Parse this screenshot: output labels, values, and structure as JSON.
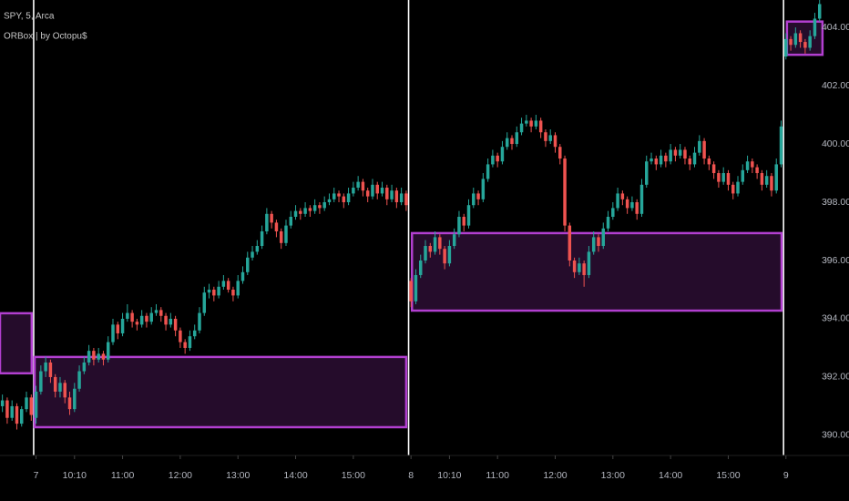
{
  "chart_data": {
    "type": "candlestick",
    "title": "SPY, 5, Arca",
    "subtitle": "ORBox | by Octopu$",
    "up_color": "#26a69a",
    "down_color": "#ef5350",
    "box_color": "#b23fd0",
    "box_fill": "#250c2b",
    "xlim": [
      -0.5,
      171
    ],
    "ylim": [
      389.31,
      404.94
    ],
    "yticks": [
      {
        "value": 390,
        "label": "390.00"
      },
      {
        "value": 392,
        "label": "392.00"
      },
      {
        "value": 394,
        "label": "394.00"
      },
      {
        "value": 396,
        "label": "396.00"
      },
      {
        "value": 398,
        "label": "398.00"
      },
      {
        "value": 400,
        "label": "400.00"
      },
      {
        "value": 402,
        "label": "402.00"
      },
      {
        "value": 404,
        "label": "404.00"
      }
    ],
    "xticks": [
      {
        "value": 7,
        "label": "7"
      },
      {
        "value": 15,
        "label": "10:10"
      },
      {
        "value": 25,
        "label": "11:00"
      },
      {
        "value": 37,
        "label": "12:00"
      },
      {
        "value": 49,
        "label": "13:00"
      },
      {
        "value": 61,
        "label": "14:00"
      },
      {
        "value": 73,
        "label": "15:00"
      },
      {
        "value": 85,
        "label": "8"
      },
      {
        "value": 93,
        "label": "10:10"
      },
      {
        "value": 103,
        "label": "11:00"
      },
      {
        "value": 115,
        "label": "12:00"
      },
      {
        "value": 127,
        "label": "13:00"
      },
      {
        "value": 139,
        "label": "14:00"
      },
      {
        "value": 151,
        "label": "15:00"
      },
      {
        "value": 163,
        "label": "9"
      }
    ],
    "session_breaks": [
      6.5,
      84.5,
      162.5
    ],
    "boxes": [
      {
        "x": [
          -0.5,
          6.1
        ],
        "y": [
          392.13,
          394.19
        ]
      },
      {
        "x": [
          6.7,
          84.0
        ],
        "y": [
          390.28,
          392.69
        ]
      },
      {
        "x": [
          85.2,
          162.1
        ],
        "y": [
          394.28,
          396.94
        ]
      },
      {
        "x": [
          163.2,
          170.6
        ],
        "y": [
          403.06,
          404.2
        ]
      }
    ],
    "ohlc": [
      [
        391.0,
        391.4,
        390.8,
        391.2
      ],
      [
        391.2,
        391.3,
        390.4,
        390.6
      ],
      [
        390.6,
        391.2,
        390.5,
        391.0
      ],
      [
        391.0,
        391.1,
        390.2,
        390.4
      ],
      [
        390.4,
        391.0,
        390.3,
        390.9
      ],
      [
        390.9,
        391.5,
        390.8,
        391.3
      ],
      [
        391.3,
        391.4,
        390.5,
        390.7
      ],
      [
        390.6,
        391.7,
        390.4,
        391.5
      ],
      [
        391.5,
        392.4,
        391.4,
        392.2
      ],
      [
        392.2,
        392.7,
        392.0,
        392.5
      ],
      [
        392.5,
        392.6,
        391.8,
        392.0
      ],
      [
        392.0,
        392.1,
        391.3,
        391.5
      ],
      [
        391.5,
        392.0,
        391.3,
        391.8
      ],
      [
        391.8,
        391.9,
        391.1,
        391.3
      ],
      [
        391.3,
        391.5,
        390.7,
        390.9
      ],
      [
        390.9,
        391.8,
        390.8,
        391.6
      ],
      [
        391.6,
        392.4,
        391.5,
        392.2
      ],
      [
        392.2,
        392.7,
        392.1,
        392.5
      ],
      [
        392.5,
        393.1,
        392.4,
        392.9
      ],
      [
        392.9,
        393.0,
        392.4,
        392.6
      ],
      [
        392.6,
        393.0,
        392.5,
        392.8
      ],
      [
        392.8,
        392.9,
        392.4,
        392.6
      ],
      [
        392.6,
        393.4,
        392.5,
        393.2
      ],
      [
        393.2,
        394.0,
        393.1,
        393.8
      ],
      [
        393.8,
        393.9,
        393.3,
        393.5
      ],
      [
        393.5,
        394.2,
        393.4,
        394.0
      ],
      [
        394.0,
        394.5,
        393.9,
        394.2
      ],
      [
        394.2,
        394.3,
        393.7,
        393.9
      ],
      [
        393.9,
        394.0,
        393.6,
        393.8
      ],
      [
        393.8,
        394.3,
        393.7,
        394.1
      ],
      [
        394.1,
        394.2,
        393.7,
        393.9
      ],
      [
        393.9,
        394.4,
        393.8,
        394.2
      ],
      [
        394.2,
        394.5,
        394.1,
        394.3
      ],
      [
        394.3,
        394.4,
        393.9,
        394.1
      ],
      [
        394.1,
        394.2,
        393.6,
        393.8
      ],
      [
        393.8,
        394.2,
        393.7,
        394.0
      ],
      [
        394.0,
        394.1,
        393.4,
        393.6
      ],
      [
        393.6,
        393.7,
        393.0,
        393.2
      ],
      [
        393.2,
        393.3,
        392.8,
        393.0
      ],
      [
        393.0,
        393.6,
        392.9,
        393.4
      ],
      [
        393.4,
        393.8,
        393.3,
        393.6
      ],
      [
        393.6,
        394.4,
        393.5,
        394.2
      ],
      [
        394.2,
        395.1,
        394.1,
        394.9
      ],
      [
        394.9,
        395.2,
        394.7,
        395.0
      ],
      [
        395.0,
        395.1,
        394.6,
        394.8
      ],
      [
        394.8,
        395.3,
        394.7,
        395.1
      ],
      [
        395.1,
        395.5,
        395.0,
        395.3
      ],
      [
        395.3,
        395.4,
        394.9,
        395.0
      ],
      [
        395.0,
        395.1,
        394.6,
        394.8
      ],
      [
        394.8,
        395.5,
        394.7,
        395.3
      ],
      [
        395.3,
        395.8,
        395.2,
        395.6
      ],
      [
        395.6,
        396.3,
        395.5,
        396.1
      ],
      [
        396.1,
        396.5,
        396.0,
        396.3
      ],
      [
        396.3,
        396.7,
        396.2,
        396.5
      ],
      [
        396.5,
        397.2,
        396.4,
        397.0
      ],
      [
        397.0,
        397.8,
        396.9,
        397.6
      ],
      [
        397.6,
        397.7,
        397.1,
        397.3
      ],
      [
        397.3,
        397.4,
        396.8,
        397.0
      ],
      [
        397.0,
        397.1,
        396.4,
        396.6
      ],
      [
        396.6,
        397.4,
        396.5,
        397.2
      ],
      [
        397.2,
        397.7,
        397.1,
        397.5
      ],
      [
        397.5,
        397.9,
        397.4,
        397.7
      ],
      [
        397.7,
        397.8,
        397.4,
        397.6
      ],
      [
        397.6,
        398.0,
        397.5,
        397.8
      ],
      [
        397.8,
        397.9,
        397.5,
        397.7
      ],
      [
        397.7,
        398.1,
        397.6,
        397.9
      ],
      [
        397.9,
        398.0,
        397.6,
        397.8
      ],
      [
        397.8,
        398.2,
        397.7,
        398.0
      ],
      [
        398.0,
        398.3,
        397.9,
        398.1
      ],
      [
        398.1,
        398.5,
        398.0,
        398.3
      ],
      [
        398.3,
        398.4,
        398.0,
        398.2
      ],
      [
        398.2,
        398.3,
        397.8,
        398.0
      ],
      [
        398.0,
        398.5,
        397.9,
        398.3
      ],
      [
        398.3,
        398.7,
        398.2,
        398.5
      ],
      [
        398.5,
        398.9,
        398.4,
        398.7
      ],
      [
        398.7,
        398.8,
        398.2,
        398.4
      ],
      [
        398.4,
        398.5,
        398.0,
        398.2
      ],
      [
        398.2,
        398.8,
        398.1,
        398.6
      ],
      [
        398.6,
        398.7,
        398.1,
        398.3
      ],
      [
        398.3,
        398.7,
        398.2,
        398.5
      ],
      [
        398.5,
        398.6,
        397.9,
        398.1
      ],
      [
        398.1,
        398.6,
        398.0,
        398.4
      ],
      [
        398.4,
        398.5,
        397.8,
        398.0
      ],
      [
        398.0,
        398.5,
        397.9,
        398.3
      ],
      [
        398.3,
        398.4,
        397.7,
        397.9
      ],
      [
        395.3,
        395.4,
        394.4,
        394.6
      ],
      [
        394.6,
        395.7,
        394.5,
        395.5
      ],
      [
        395.5,
        396.2,
        395.4,
        396.0
      ],
      [
        396.0,
        396.7,
        395.9,
        396.5
      ],
      [
        396.5,
        396.6,
        396.1,
        396.3
      ],
      [
        396.3,
        397.0,
        396.2,
        396.8
      ],
      [
        396.8,
        396.9,
        396.2,
        396.4
      ],
      [
        396.4,
        396.5,
        395.7,
        395.9
      ],
      [
        395.9,
        396.7,
        395.8,
        396.5
      ],
      [
        396.5,
        397.1,
        396.4,
        396.9
      ],
      [
        396.9,
        397.7,
        396.8,
        397.5
      ],
      [
        397.5,
        397.6,
        397.0,
        397.2
      ],
      [
        397.2,
        398.1,
        397.1,
        397.9
      ],
      [
        397.9,
        398.5,
        397.8,
        398.3
      ],
      [
        398.3,
        398.4,
        397.9,
        398.1
      ],
      [
        398.1,
        399.0,
        398.0,
        398.8
      ],
      [
        398.8,
        399.5,
        398.7,
        399.3
      ],
      [
        399.3,
        399.8,
        399.2,
        399.6
      ],
      [
        399.6,
        399.7,
        399.2,
        399.4
      ],
      [
        399.4,
        400.1,
        399.3,
        399.9
      ],
      [
        399.9,
        400.4,
        399.8,
        400.2
      ],
      [
        400.2,
        400.3,
        399.8,
        400.0
      ],
      [
        400.0,
        400.6,
        399.9,
        400.4
      ],
      [
        400.4,
        400.9,
        400.3,
        400.7
      ],
      [
        400.7,
        401.0,
        400.6,
        400.8
      ],
      [
        400.8,
        400.9,
        400.4,
        400.6
      ],
      [
        400.6,
        401.0,
        400.5,
        400.8
      ],
      [
        400.8,
        400.9,
        400.2,
        400.4
      ],
      [
        400.4,
        400.5,
        399.9,
        400.1
      ],
      [
        400.1,
        400.5,
        400.0,
        400.3
      ],
      [
        400.3,
        400.4,
        399.7,
        399.9
      ],
      [
        399.9,
        400.0,
        399.3,
        399.5
      ],
      [
        399.5,
        399.6,
        397.0,
        397.2
      ],
      [
        397.2,
        397.3,
        395.8,
        396.0
      ],
      [
        396.0,
        396.1,
        395.4,
        395.6
      ],
      [
        395.6,
        396.1,
        395.5,
        395.9
      ],
      [
        395.9,
        396.0,
        395.1,
        395.5
      ],
      [
        395.5,
        396.5,
        395.4,
        396.3
      ],
      [
        396.3,
        397.0,
        396.2,
        396.8
      ],
      [
        396.8,
        396.9,
        396.3,
        396.5
      ],
      [
        396.5,
        397.3,
        396.4,
        397.1
      ],
      [
        397.1,
        397.7,
        397.0,
        397.5
      ],
      [
        397.5,
        398.0,
        397.4,
        397.8
      ],
      [
        397.8,
        398.5,
        397.7,
        398.3
      ],
      [
        398.3,
        398.4,
        397.9,
        398.1
      ],
      [
        398.1,
        398.2,
        397.6,
        397.8
      ],
      [
        397.8,
        398.2,
        397.7,
        398.0
      ],
      [
        398.0,
        398.1,
        397.4,
        397.6
      ],
      [
        397.6,
        398.8,
        397.5,
        398.6
      ],
      [
        398.6,
        399.6,
        398.5,
        399.4
      ],
      [
        399.4,
        399.7,
        399.3,
        399.5
      ],
      [
        399.5,
        399.6,
        399.1,
        399.3
      ],
      [
        399.3,
        399.8,
        399.2,
        399.6
      ],
      [
        399.6,
        399.7,
        399.2,
        399.4
      ],
      [
        399.4,
        400.0,
        399.3,
        399.8
      ],
      [
        399.8,
        399.9,
        399.4,
        399.6
      ],
      [
        399.6,
        400.0,
        399.5,
        399.8
      ],
      [
        399.8,
        399.9,
        399.3,
        399.5
      ],
      [
        399.5,
        399.6,
        399.1,
        399.3
      ],
      [
        399.3,
        399.9,
        399.2,
        399.7
      ],
      [
        399.7,
        400.3,
        399.6,
        400.1
      ],
      [
        400.1,
        400.2,
        399.3,
        399.5
      ],
      [
        399.5,
        399.6,
        399.1,
        399.3
      ],
      [
        399.3,
        399.4,
        398.8,
        399.0
      ],
      [
        399.0,
        399.1,
        398.5,
        398.7
      ],
      [
        398.7,
        399.2,
        398.6,
        399.0
      ],
      [
        399.0,
        399.1,
        398.4,
        398.6
      ],
      [
        398.6,
        398.7,
        398.1,
        398.3
      ],
      [
        398.3,
        398.9,
        398.2,
        398.7
      ],
      [
        398.7,
        399.3,
        398.6,
        399.1
      ],
      [
        399.1,
        399.6,
        399.0,
        399.4
      ],
      [
        399.4,
        399.5,
        399.0,
        399.2
      ],
      [
        399.2,
        399.3,
        398.8,
        399.0
      ],
      [
        399.0,
        399.1,
        398.4,
        398.6
      ],
      [
        398.6,
        399.1,
        398.5,
        398.9
      ],
      [
        398.9,
        399.0,
        398.2,
        398.4
      ],
      [
        398.4,
        399.5,
        398.3,
        399.3
      ],
      [
        399.3,
        400.8,
        399.2,
        400.6
      ],
      [
        403.0,
        403.8,
        402.9,
        403.6
      ],
      [
        403.6,
        403.7,
        403.2,
        403.4
      ],
      [
        403.4,
        404.0,
        403.3,
        403.8
      ],
      [
        403.8,
        403.9,
        403.3,
        403.5
      ],
      [
        403.5,
        403.6,
        403.1,
        403.3
      ],
      [
        403.3,
        403.9,
        403.2,
        403.7
      ],
      [
        403.7,
        404.5,
        403.6,
        404.3
      ],
      [
        404.3,
        405.0,
        404.2,
        404.8
      ]
    ]
  }
}
